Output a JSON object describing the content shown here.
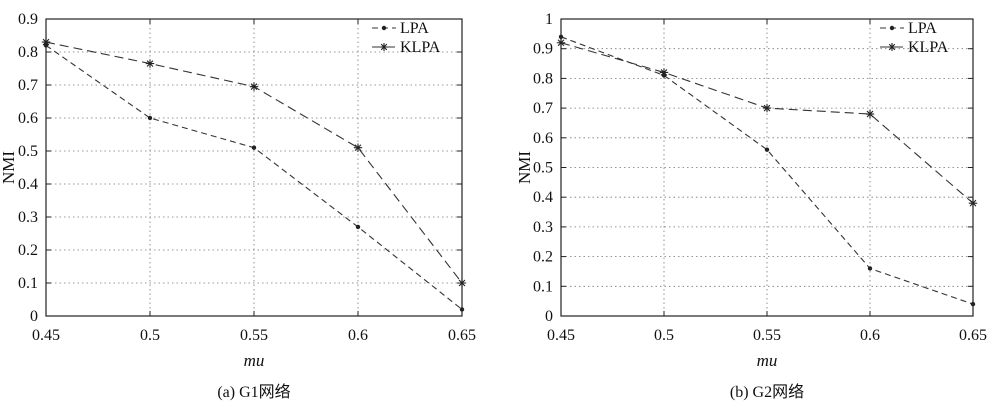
{
  "chart_data": [
    {
      "type": "line",
      "caption": "(a) G1网络",
      "xlabel": "mu",
      "ylabel": "NMI",
      "x": [
        0.45,
        0.5,
        0.55,
        0.6,
        0.65
      ],
      "xlim": [
        0.45,
        0.65
      ],
      "ylim": [
        0,
        0.9
      ],
      "xticks": [
        "0.45",
        "0.5",
        "0.55",
        "0.6",
        "0.65"
      ],
      "yticks": [
        "0",
        "0.1",
        "0.2",
        "0.3",
        "0.4",
        "0.5",
        "0.6",
        "0.7",
        "0.8",
        "0.9"
      ],
      "grid": true,
      "legend_position": "top-right",
      "series": [
        {
          "name": "LPA",
          "marker": "dot",
          "values": [
            0.82,
            0.6,
            0.51,
            0.27,
            0.02
          ]
        },
        {
          "name": "KLPA",
          "marker": "star",
          "values": [
            0.83,
            0.765,
            0.695,
            0.51,
            0.1
          ]
        }
      ]
    },
    {
      "type": "line",
      "caption": "(b) G2网络",
      "xlabel": "mu",
      "ylabel": "NMI",
      "x": [
        0.45,
        0.5,
        0.55,
        0.6,
        0.65
      ],
      "xlim": [
        0.45,
        0.65
      ],
      "ylim": [
        0,
        1
      ],
      "xticks": [
        "0.45",
        "0.5",
        "0.55",
        "0.6",
        "0.65"
      ],
      "yticks": [
        "0",
        "0.1",
        "0.2",
        "0.3",
        "0.4",
        "0.5",
        "0.6",
        "0.7",
        "0.8",
        "0.9",
        "1"
      ],
      "grid": true,
      "legend_position": "top-right",
      "series": [
        {
          "name": "LPA",
          "marker": "dot",
          "values": [
            0.94,
            0.81,
            0.56,
            0.16,
            0.04
          ]
        },
        {
          "name": "KLPA",
          "marker": "star",
          "values": [
            0.92,
            0.82,
            0.7,
            0.68,
            0.38
          ]
        }
      ]
    }
  ]
}
